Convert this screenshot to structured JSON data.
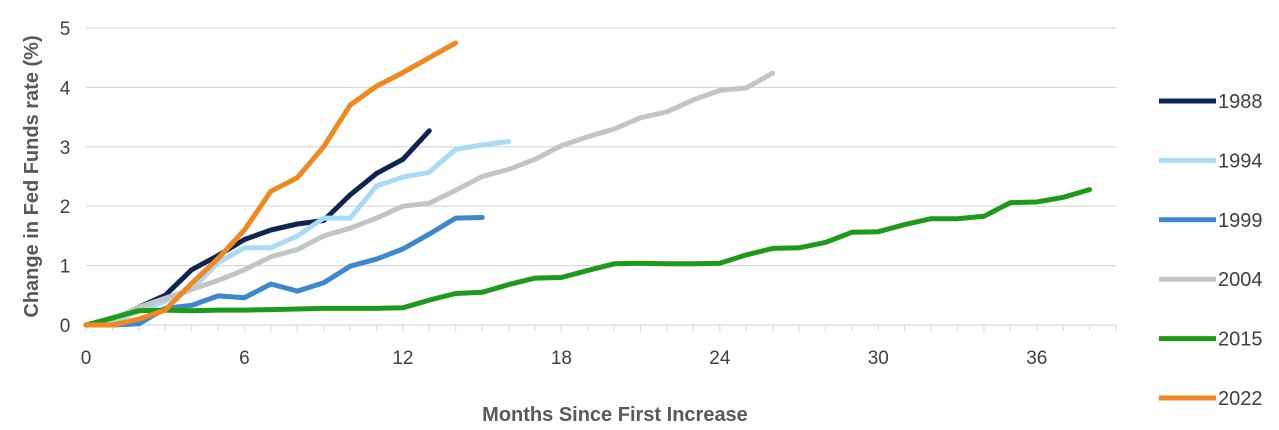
{
  "chart_data": {
    "type": "line",
    "title": "",
    "xlabel": "Months Since First Increase",
    "ylabel": "Change in Fed Funds rate (%)",
    "xlim": [
      0,
      39
    ],
    "ylim": [
      0,
      5
    ],
    "xticks": [
      0,
      6,
      12,
      18,
      24,
      30,
      36
    ],
    "yticks": [
      0,
      1,
      2,
      3,
      4,
      5
    ],
    "grid": "horizontal",
    "legend_position": "right",
    "series": [
      {
        "name": "1988",
        "color": "#0e2453",
        "x": [
          0,
          1,
          2,
          3,
          4,
          5,
          6,
          7,
          8,
          9,
          10,
          11,
          12,
          13
        ],
        "y": [
          0,
          0.05,
          0.3,
          0.5,
          0.93,
          1.17,
          1.44,
          1.6,
          1.7,
          1.76,
          2.19,
          2.55,
          2.79,
          3.27
        ]
      },
      {
        "name": "1994",
        "color": "#a8dcf6",
        "x": [
          0,
          1,
          2,
          3,
          4,
          5,
          6,
          7,
          8,
          9,
          10,
          11,
          12,
          13,
          14,
          15,
          16
        ],
        "y": [
          0,
          0.05,
          0.23,
          0.4,
          0.6,
          1.05,
          1.3,
          1.3,
          1.5,
          1.8,
          1.8,
          2.34,
          2.49,
          2.57,
          2.96,
          3.03,
          3.09
        ]
      },
      {
        "name": "1999",
        "color": "#3b88d0",
        "x": [
          0,
          1,
          2,
          3,
          4,
          5,
          6,
          7,
          8,
          9,
          10,
          11,
          12,
          13,
          14,
          15
        ],
        "y": [
          0,
          0,
          0.02,
          0.28,
          0.33,
          0.49,
          0.46,
          0.69,
          0.57,
          0.71,
          0.99,
          1.11,
          1.28,
          1.53,
          1.8,
          1.81
        ]
      },
      {
        "name": "2004",
        "color": "#c4c4c4",
        "x": [
          0,
          1,
          2,
          3,
          4,
          5,
          6,
          7,
          8,
          9,
          10,
          11,
          12,
          13,
          14,
          15,
          16,
          17,
          18,
          19,
          20,
          21,
          22,
          23,
          24,
          25,
          26
        ],
        "y": [
          0,
          0.1,
          0.3,
          0.45,
          0.6,
          0.75,
          0.93,
          1.15,
          1.27,
          1.5,
          1.63,
          1.8,
          2.0,
          2.05,
          2.27,
          2.5,
          2.62,
          2.79,
          3.02,
          3.17,
          3.3,
          3.49,
          3.59,
          3.79,
          3.95,
          3.99,
          4.24
        ]
      },
      {
        "name": "2015",
        "color": "#1e9a1b",
        "x": [
          0,
          1,
          2,
          3,
          4,
          5,
          6,
          7,
          8,
          9,
          10,
          11,
          12,
          13,
          14,
          15,
          16,
          17,
          18,
          19,
          20,
          21,
          22,
          23,
          24,
          25,
          26,
          27,
          28,
          29,
          30,
          31,
          32,
          33,
          34,
          35,
          36,
          37,
          38
        ],
        "y": [
          0,
          0.12,
          0.24,
          0.25,
          0.24,
          0.25,
          0.25,
          0.26,
          0.27,
          0.28,
          0.28,
          0.28,
          0.29,
          0.42,
          0.53,
          0.55,
          0.68,
          0.79,
          0.8,
          0.92,
          1.03,
          1.04,
          1.03,
          1.03,
          1.04,
          1.18,
          1.29,
          1.3,
          1.39,
          1.56,
          1.57,
          1.69,
          1.79,
          1.79,
          1.83,
          2.06,
          2.07,
          2.15,
          2.28
        ]
      },
      {
        "name": "2022",
        "color": "#f0871f",
        "x": [
          0,
          1,
          2,
          3,
          4,
          5,
          6,
          7,
          8,
          9,
          10,
          11,
          12,
          13,
          14
        ],
        "y": [
          0,
          0.0,
          0.1,
          0.25,
          0.7,
          1.12,
          1.6,
          2.25,
          2.48,
          3.0,
          3.7,
          4.02,
          4.25,
          4.5,
          4.75
        ]
      }
    ]
  }
}
